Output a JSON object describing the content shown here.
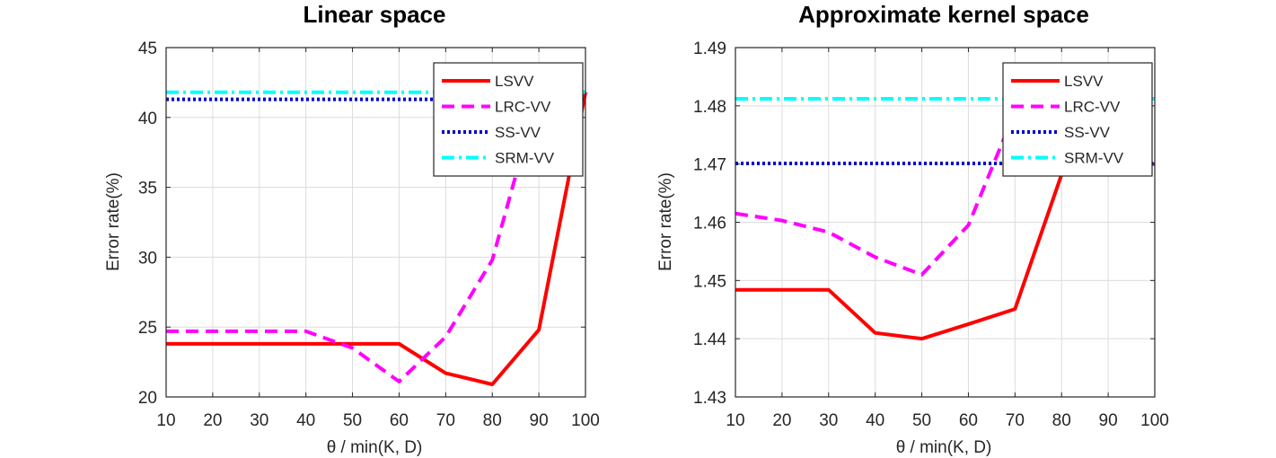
{
  "chart_data": [
    {
      "type": "line",
      "title": "Linear space",
      "xlabel": "θ / min(K, D)",
      "ylabel": "Error rate(%)",
      "xlim": [
        10,
        100
      ],
      "ylim": [
        20,
        45
      ],
      "xticks": [
        10,
        20,
        30,
        40,
        50,
        60,
        70,
        80,
        90,
        100
      ],
      "yticks": [
        20,
        25,
        30,
        35,
        40,
        45
      ],
      "grid": true,
      "legend_position": "top-right",
      "series": [
        {
          "name": "LSVV",
          "color": "#ff0000",
          "style": "solid",
          "x": [
            10,
            20,
            30,
            40,
            50,
            60,
            70,
            80,
            90,
            100
          ],
          "y": [
            23.8,
            23.8,
            23.8,
            23.8,
            23.8,
            23.8,
            21.7,
            20.9,
            24.8,
            41.8
          ]
        },
        {
          "name": "LRC-VV",
          "color": "#ff00ff",
          "style": "dashed",
          "x": [
            10,
            20,
            30,
            40,
            50,
            60,
            70,
            80,
            90,
            100
          ],
          "y": [
            24.7,
            24.7,
            24.7,
            24.7,
            23.5,
            21.1,
            24.3,
            29.8,
            41.8,
            41.8
          ]
        },
        {
          "name": "SS-VV",
          "color": "#0000cc",
          "style": "dotted",
          "x": [
            10,
            100
          ],
          "y": [
            41.3,
            41.3
          ]
        },
        {
          "name": "SRM-VV",
          "color": "#00ffff",
          "style": "dashdot",
          "x": [
            10,
            100
          ],
          "y": [
            41.8,
            41.8
          ]
        }
      ]
    },
    {
      "type": "line",
      "title": "Approximate kernel space",
      "xlabel": "θ / min(K, D)",
      "ylabel": "Error rate(%)",
      "xlim": [
        10,
        100
      ],
      "ylim": [
        1.43,
        1.49
      ],
      "xticks": [
        10,
        20,
        30,
        40,
        50,
        60,
        70,
        80,
        90,
        100
      ],
      "yticks": [
        1.43,
        1.44,
        1.45,
        1.46,
        1.47,
        1.48,
        1.49
      ],
      "grid": true,
      "legend_position": "top-right",
      "series": [
        {
          "name": "LSVV",
          "color": "#ff0000",
          "style": "solid",
          "x": [
            10,
            20,
            30,
            40,
            50,
            60,
            70,
            80,
            90,
            100
          ],
          "y": [
            1.4484,
            1.4484,
            1.4484,
            1.441,
            1.44,
            1.4425,
            1.4451,
            1.4682,
            1.47,
            1.47
          ]
        },
        {
          "name": "LRC-VV",
          "color": "#ff00ff",
          "style": "dashed",
          "x": [
            10,
            20,
            30,
            40,
            50,
            60,
            70,
            80,
            90,
            100
          ],
          "y": [
            1.4615,
            1.4603,
            1.4583,
            1.454,
            1.451,
            1.4595,
            1.479,
            1.4812,
            1.4812,
            1.4812
          ]
        },
        {
          "name": "SS-VV",
          "color": "#0000cc",
          "style": "dotted",
          "x": [
            10,
            100
          ],
          "y": [
            1.4701,
            1.4701
          ]
        },
        {
          "name": "SRM-VV",
          "color": "#00ffff",
          "style": "dashdot",
          "x": [
            10,
            100
          ],
          "y": [
            1.4812,
            1.4812
          ]
        }
      ]
    }
  ]
}
